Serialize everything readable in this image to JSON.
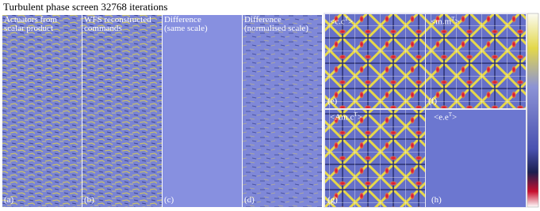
{
  "header": {
    "title": "Turbulent phase screen 32768 iterations"
  },
  "left_panels": [
    {
      "label": "(a)",
      "caption": [
        "Actuators from",
        "scalar product"
      ]
    },
    {
      "label": "(b)",
      "caption": [
        "WFS reconstructed",
        "commands"
      ]
    },
    {
      "label": "(c)",
      "caption": [
        "Difference",
        "(same scale)"
      ]
    },
    {
      "label": "(d)",
      "caption": [
        "Difference",
        "(normalised scale)"
      ]
    }
  ],
  "right_panels": [
    {
      "label": "(e)",
      "caption": {
        "base": "<c.c",
        "sup": "T",
        "end": ">"
      }
    },
    {
      "label": "(f)",
      "caption": {
        "base": "<m.m",
        "sup": "T",
        "end": ">"
      }
    },
    {
      "label": "(g)",
      "caption": {
        "base": "<Am.c",
        "sup": "T",
        "end": ">"
      }
    },
    {
      "label": "(h)",
      "caption": {
        "base": "<e.e",
        "sup": "T",
        "end": ">"
      }
    }
  ]
}
